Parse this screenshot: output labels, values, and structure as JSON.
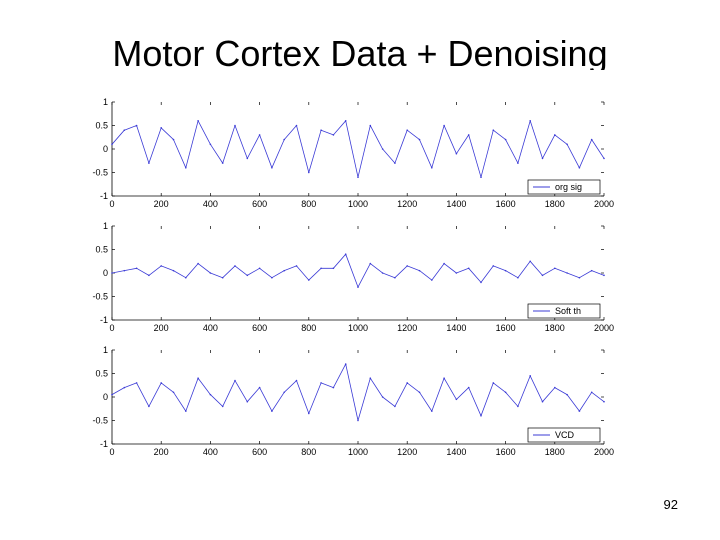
{
  "slide": {
    "title": "Motor Cortex Data + Denoising",
    "page_number": "92"
  },
  "colors": {
    "signal": "#3b3bd6",
    "axis": "#000000"
  },
  "chart_data": [
    {
      "type": "line",
      "legend": "org sig",
      "legend_position": "bottom-right",
      "xlim": [
        0,
        2000
      ],
      "ylim": [
        -1,
        1
      ],
      "x_ticks": [
        0,
        200,
        400,
        600,
        800,
        1000,
        1200,
        1400,
        1600,
        1800,
        2000
      ],
      "y_ticks": [
        1,
        0.5,
        0,
        -0.5,
        -1
      ],
      "x_tick_labels": [
        "0",
        "200",
        "400",
        "600",
        "800",
        "1000",
        "1200",
        "1400",
        "1600",
        "1800",
        "2000"
      ],
      "y_tick_labels": [
        "1",
        "0.5",
        "0",
        "-0.5",
        "-1"
      ],
      "series": [
        {
          "x": [
            0,
            50,
            100,
            150,
            200,
            250,
            300,
            350,
            400,
            450,
            500,
            550,
            600,
            650,
            700,
            750,
            800,
            850,
            900,
            950,
            1000,
            1050,
            1100,
            1150,
            1200,
            1250,
            1300,
            1350,
            1400,
            1450,
            1500,
            1550,
            1600,
            1650,
            1700,
            1750,
            1800,
            1850,
            1900,
            1950,
            2000
          ],
          "y": [
            0.1,
            0.4,
            0.5,
            -0.3,
            0.45,
            0.2,
            -0.4,
            0.6,
            0.1,
            -0.3,
            0.5,
            -0.2,
            0.3,
            -0.4,
            0.2,
            0.5,
            -0.5,
            0.4,
            0.3,
            0.6,
            -0.6,
            0.5,
            0.0,
            -0.3,
            0.4,
            0.2,
            -0.4,
            0.5,
            -0.1,
            0.3,
            -0.6,
            0.4,
            0.2,
            -0.3,
            0.6,
            -0.2,
            0.3,
            0.1,
            -0.4,
            0.2,
            -0.2
          ]
        }
      ]
    },
    {
      "type": "line",
      "legend": "Soft th",
      "legend_position": "bottom-right",
      "xlim": [
        0,
        2000
      ],
      "ylim": [
        -1,
        1
      ],
      "x_ticks": [
        0,
        200,
        400,
        600,
        800,
        1000,
        1200,
        1400,
        1600,
        1800,
        2000
      ],
      "y_ticks": [
        1,
        0.5,
        0,
        -0.5,
        -1
      ],
      "x_tick_labels": [
        "0",
        "200",
        "400",
        "600",
        "800",
        "1000",
        "1200",
        "1400",
        "1600",
        "1800",
        "2000"
      ],
      "y_tick_labels": [
        "1",
        "0.5",
        "0",
        "-0.5",
        "-1"
      ],
      "series": [
        {
          "x": [
            0,
            50,
            100,
            150,
            200,
            250,
            300,
            350,
            400,
            450,
            500,
            550,
            600,
            650,
            700,
            750,
            800,
            850,
            900,
            950,
            1000,
            1050,
            1100,
            1150,
            1200,
            1250,
            1300,
            1350,
            1400,
            1450,
            1500,
            1550,
            1600,
            1650,
            1700,
            1750,
            1800,
            1850,
            1900,
            1950,
            2000
          ],
          "y": [
            0.0,
            0.05,
            0.1,
            -0.05,
            0.15,
            0.05,
            -0.1,
            0.2,
            0.0,
            -0.1,
            0.15,
            -0.05,
            0.1,
            -0.1,
            0.05,
            0.15,
            -0.15,
            0.1,
            0.1,
            0.4,
            -0.3,
            0.2,
            0.0,
            -0.1,
            0.15,
            0.05,
            -0.15,
            0.2,
            0.0,
            0.1,
            -0.2,
            0.15,
            0.05,
            -0.1,
            0.25,
            -0.05,
            0.1,
            0.0,
            -0.1,
            0.05,
            -0.05
          ]
        }
      ]
    },
    {
      "type": "line",
      "legend": "VCD",
      "legend_position": "bottom-right",
      "xlim": [
        0,
        2000
      ],
      "ylim": [
        -1,
        1
      ],
      "x_ticks": [
        0,
        200,
        400,
        600,
        800,
        1000,
        1200,
        1400,
        1600,
        1800,
        2000
      ],
      "y_ticks": [
        1,
        0.5,
        0,
        -0.5,
        -1
      ],
      "x_tick_labels": [
        "0",
        "200",
        "400",
        "600",
        "800",
        "1000",
        "1200",
        "1400",
        "1600",
        "1800",
        "2000"
      ],
      "y_tick_labels": [
        "1",
        "0.5",
        "0",
        "-0.5",
        "-1"
      ],
      "series": [
        {
          "x": [
            0,
            50,
            100,
            150,
            200,
            250,
            300,
            350,
            400,
            450,
            500,
            550,
            600,
            650,
            700,
            750,
            800,
            850,
            900,
            950,
            1000,
            1050,
            1100,
            1150,
            1200,
            1250,
            1300,
            1350,
            1400,
            1450,
            1500,
            1550,
            1600,
            1650,
            1700,
            1750,
            1800,
            1850,
            1900,
            1950,
            2000
          ],
          "y": [
            0.05,
            0.2,
            0.3,
            -0.2,
            0.3,
            0.1,
            -0.3,
            0.4,
            0.05,
            -0.2,
            0.35,
            -0.1,
            0.2,
            -0.3,
            0.1,
            0.35,
            -0.35,
            0.3,
            0.2,
            0.7,
            -0.5,
            0.4,
            0.0,
            -0.2,
            0.3,
            0.1,
            -0.3,
            0.4,
            -0.05,
            0.2,
            -0.4,
            0.3,
            0.1,
            -0.2,
            0.45,
            -0.1,
            0.2,
            0.05,
            -0.3,
            0.1,
            -0.1
          ]
        }
      ]
    }
  ]
}
